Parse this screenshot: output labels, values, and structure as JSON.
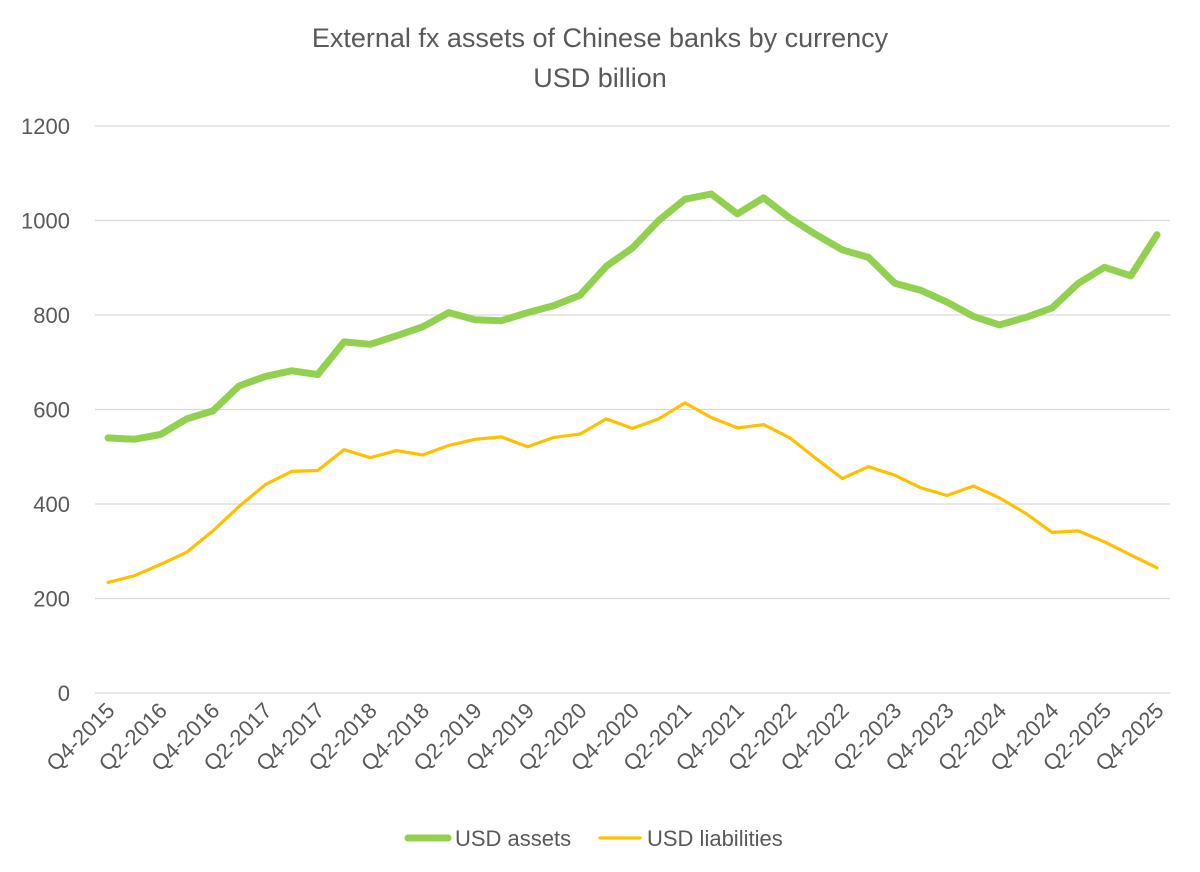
{
  "chart_data": {
    "type": "line",
    "title": "External fx assets of Chinese banks by currency",
    "subtitle": "USD billion",
    "xlabel": "",
    "ylabel": "",
    "ylim": [
      0,
      1200
    ],
    "yticks": [
      0,
      200,
      400,
      600,
      800,
      1000,
      1200
    ],
    "grid": true,
    "legend_position": "bottom",
    "x": [
      "Q4-2015",
      "Q1-2016",
      "Q2-2016",
      "Q3-2016",
      "Q4-2016",
      "Q1-2017",
      "Q2-2017",
      "Q3-2017",
      "Q4-2017",
      "Q1-2018",
      "Q2-2018",
      "Q3-2018",
      "Q4-2018",
      "Q1-2019",
      "Q2-2019",
      "Q3-2019",
      "Q4-2019",
      "Q1-2020",
      "Q2-2020",
      "Q3-2020",
      "Q4-2020",
      "Q1-2021",
      "Q2-2021",
      "Q3-2021",
      "Q4-2021",
      "Q1-2022",
      "Q2-2022",
      "Q3-2022",
      "Q4-2022",
      "Q1-2023",
      "Q2-2023",
      "Q3-2023",
      "Q4-2023",
      "Q1-2024",
      "Q2-2024",
      "Q3-2024",
      "Q4-2024",
      "Q1-2025",
      "Q2-2025",
      "Q3-2025",
      "Q4-2025"
    ],
    "x_tick_labels": [
      "Q4-2015",
      "Q2-2016",
      "Q4-2016",
      "Q2-2017",
      "Q4-2017",
      "Q2-2018",
      "Q4-2018",
      "Q2-2019",
      "Q4-2019",
      "Q2-2020",
      "Q4-2020",
      "Q2-2021",
      "Q4-2021",
      "Q2-2022",
      "Q4-2022",
      "Q2-2023",
      "Q4-2023",
      "Q2-2024",
      "Q4-2024",
      "Q2-2025",
      "Q4-2025"
    ],
    "series": [
      {
        "name": "USD assets",
        "color": "#92D050",
        "values": [
          540,
          537,
          547,
          580,
          597,
          650,
          670,
          682,
          674,
          743,
          738,
          756,
          775,
          805,
          790,
          788,
          805,
          820,
          842,
          903,
          942,
          1000,
          1045,
          1056,
          1014,
          1048,
          1005,
          970,
          938,
          922,
          867,
          852,
          827,
          797,
          779,
          795,
          815,
          867,
          901,
          883,
          970
        ]
      },
      {
        "name": "USD liabilities",
        "color": "#FFC000",
        "values": [
          234,
          248,
          272,
          298,
          343,
          395,
          441,
          469,
          471,
          515,
          498,
          513,
          504,
          524,
          537,
          542,
          521,
          541,
          548,
          580,
          560,
          580,
          614,
          583,
          561,
          568,
          540,
          496,
          454,
          479,
          461,
          434,
          418,
          438,
          413,
          380,
          340,
          343,
          320,
          292,
          265
        ]
      }
    ]
  }
}
